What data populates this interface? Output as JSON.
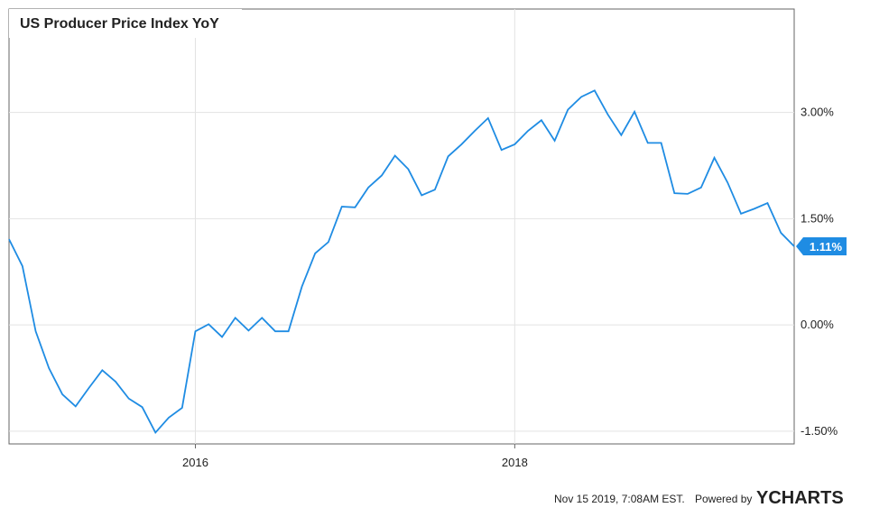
{
  "chart_data": {
    "type": "line",
    "title": "US Producer Price Index YoY",
    "x": [
      2014.833,
      2014.917,
      2015,
      2015.083,
      2015.167,
      2015.25,
      2015.333,
      2015.417,
      2015.5,
      2015.583,
      2015.667,
      2015.75,
      2015.833,
      2015.917,
      2016,
      2016.083,
      2016.167,
      2016.25,
      2016.333,
      2016.417,
      2016.5,
      2016.583,
      2016.667,
      2016.75,
      2016.833,
      2016.917,
      2017,
      2017.083,
      2017.167,
      2017.25,
      2017.333,
      2017.417,
      2017.5,
      2017.583,
      2017.667,
      2017.75,
      2017.833,
      2017.917,
      2018,
      2018.083,
      2018.167,
      2018.25,
      2018.333,
      2018.417,
      2018.5,
      2018.583,
      2018.667,
      2018.75,
      2018.833,
      2018.917,
      2019,
      2019.083,
      2019.167,
      2019.25,
      2019.333,
      2019.417,
      2019.5,
      2019.583,
      2019.667,
      2019.75
    ],
    "series": [
      {
        "name": "US Producer Price Index YoY",
        "color": "#1f8ce3",
        "values": [
          1.21,
          0.83,
          -0.09,
          -0.61,
          -0.98,
          -1.15,
          -0.89,
          -0.64,
          -0.8,
          -1.04,
          -1.16,
          -1.52,
          -1.31,
          -1.17,
          -0.09,
          0.01,
          -0.17,
          0.1,
          -0.08,
          0.1,
          -0.09,
          -0.09,
          0.54,
          1.01,
          1.17,
          1.67,
          1.66,
          1.94,
          2.11,
          2.39,
          2.2,
          1.83,
          1.91,
          2.38,
          2.55,
          2.74,
          2.92,
          2.47,
          2.55,
          2.74,
          2.89,
          2.6,
          3.04,
          3.22,
          3.31,
          2.97,
          2.68,
          3.01,
          2.57,
          2.57,
          1.86,
          1.85,
          1.94,
          2.36,
          2.01,
          1.57,
          1.64,
          1.72,
          1.3,
          1.11
        ],
        "value_labels": [
          null,
          null,
          null,
          null,
          null,
          null,
          null,
          null,
          null,
          null,
          null,
          null,
          null,
          null,
          null,
          null,
          null,
          null,
          null,
          null,
          null,
          null,
          null,
          null,
          null,
          null,
          null,
          null,
          null,
          null,
          null,
          null,
          null,
          null,
          null,
          null,
          null,
          null,
          null,
          null,
          null,
          null,
          null,
          null,
          null,
          null,
          null,
          null,
          null,
          null,
          null,
          null,
          null,
          null,
          null,
          null,
          null,
          null,
          null,
          "1.11%"
        ]
      }
    ],
    "xlim": [
      2014.833,
      2019.75
    ],
    "xticks": [
      2016,
      2018
    ],
    "ylim": [
      -1.68,
      4.46
    ],
    "yticks": [
      {
        "value": -1.5,
        "label": "-1.50%"
      },
      {
        "value": 0,
        "label": "0.00%"
      },
      {
        "value": 1.5,
        "label": "1.50%"
      },
      {
        "value": 3,
        "label": "3.00%"
      }
    ],
    "grid": true
  },
  "footer": {
    "timestamp": "Nov 15 2019, 7:08AM EST.",
    "powered_by": "Powered by",
    "brand": "YCHARTS"
  }
}
